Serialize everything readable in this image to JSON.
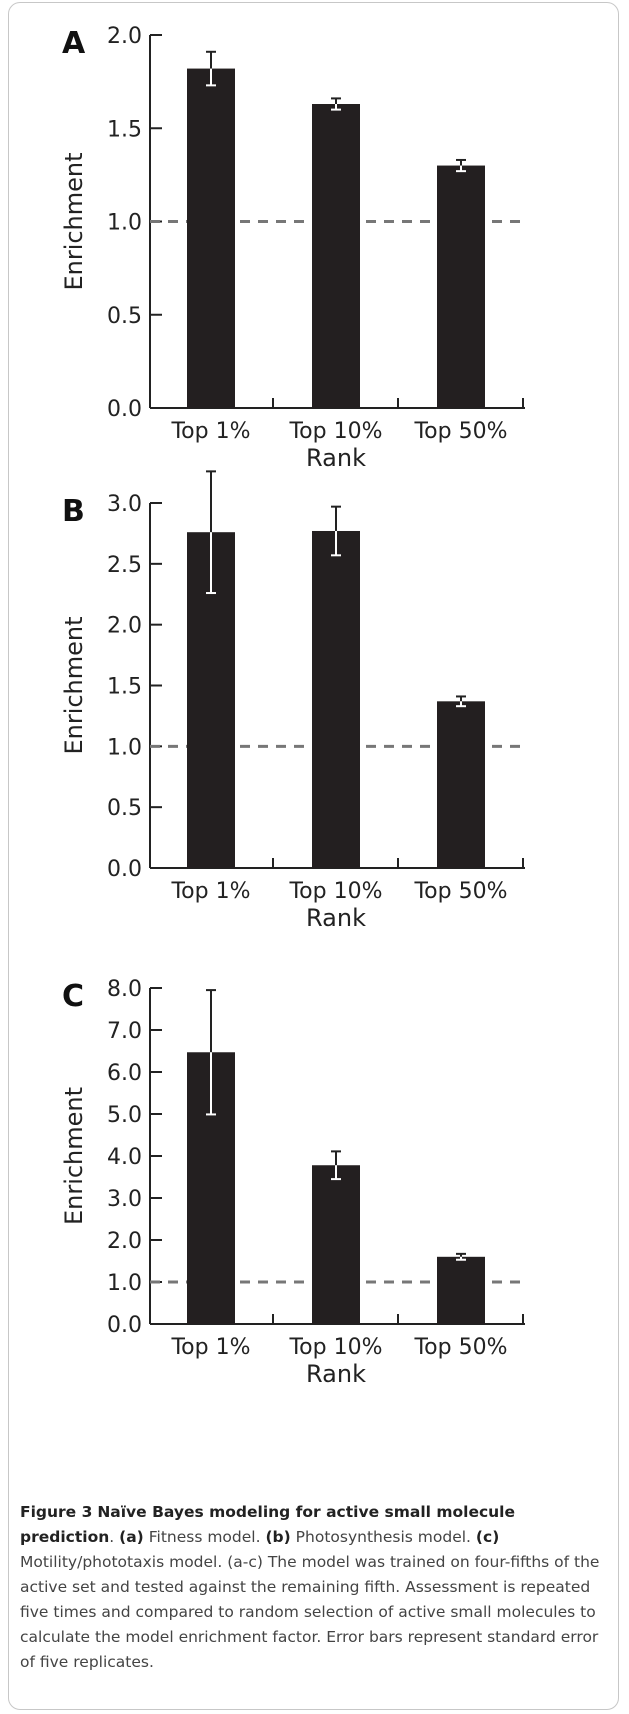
{
  "chart_data": [
    {
      "type": "bar",
      "panel": "A",
      "categories": [
        "Top 1%",
        "Top 10%",
        "Top 50%"
      ],
      "values": [
        1.82,
        1.63,
        1.3
      ],
      "errors": [
        0.09,
        0.03,
        0.03
      ],
      "xlabel": "Rank",
      "ylabel": "Enrichment",
      "ylim": [
        0,
        2.0
      ],
      "yticks": [
        "0.0",
        "0.5",
        "1.0",
        "1.5",
        "2.0"
      ],
      "reference_line": 1.0,
      "bar_color": "#231f20",
      "reference_color": "#777777"
    },
    {
      "type": "bar",
      "panel": "B",
      "categories": [
        "Top 1%",
        "Top 10%",
        "Top 50%"
      ],
      "values": [
        2.76,
        2.77,
        1.37
      ],
      "errors": [
        0.5,
        0.2,
        0.04
      ],
      "xlabel": "Rank",
      "ylabel": "Enrichment",
      "ylim": [
        0,
        3.0
      ],
      "yticks": [
        "0.0",
        "0.5",
        "1.0",
        "1.5",
        "2.0",
        "2.5",
        "3.0"
      ],
      "reference_line": 1.0,
      "bar_color": "#231f20",
      "reference_color": "#777777"
    },
    {
      "type": "bar",
      "panel": "C",
      "categories": [
        "Top 1%",
        "Top 10%",
        "Top 50%"
      ],
      "values": [
        6.47,
        3.78,
        1.6
      ],
      "errors": [
        1.48,
        0.33,
        0.07
      ],
      "xlabel": "Rank",
      "ylabel": "Enrichment",
      "ylim": [
        0,
        8.0
      ],
      "yticks": [
        "0.0",
        "1.0",
        "2.0",
        "3.0",
        "4.0",
        "5.0",
        "6.0",
        "7.0",
        "8.0"
      ],
      "reference_line": 1.0,
      "bar_color": "#231f20",
      "reference_color": "#777777"
    }
  ],
  "caption": {
    "figure_label": "Figure 3",
    "title": "Naïve Bayes modeling for active small molecule prediction",
    "part_a_label": "(a)",
    "part_a_text": "Fitness model.",
    "part_b_label": "(b)",
    "part_b_text": "Photosynthesis model.",
    "part_c_label": "(c)",
    "part_c_text": "Motility/phototaxis model. (a-c) The model was trained on four-fifths of the active set and tested against the remaining fifth. Assessment is repeated five times and compared to random selection of active small molecules to calculate the model enrichment factor. Error bars represent standard error of five replicates."
  }
}
